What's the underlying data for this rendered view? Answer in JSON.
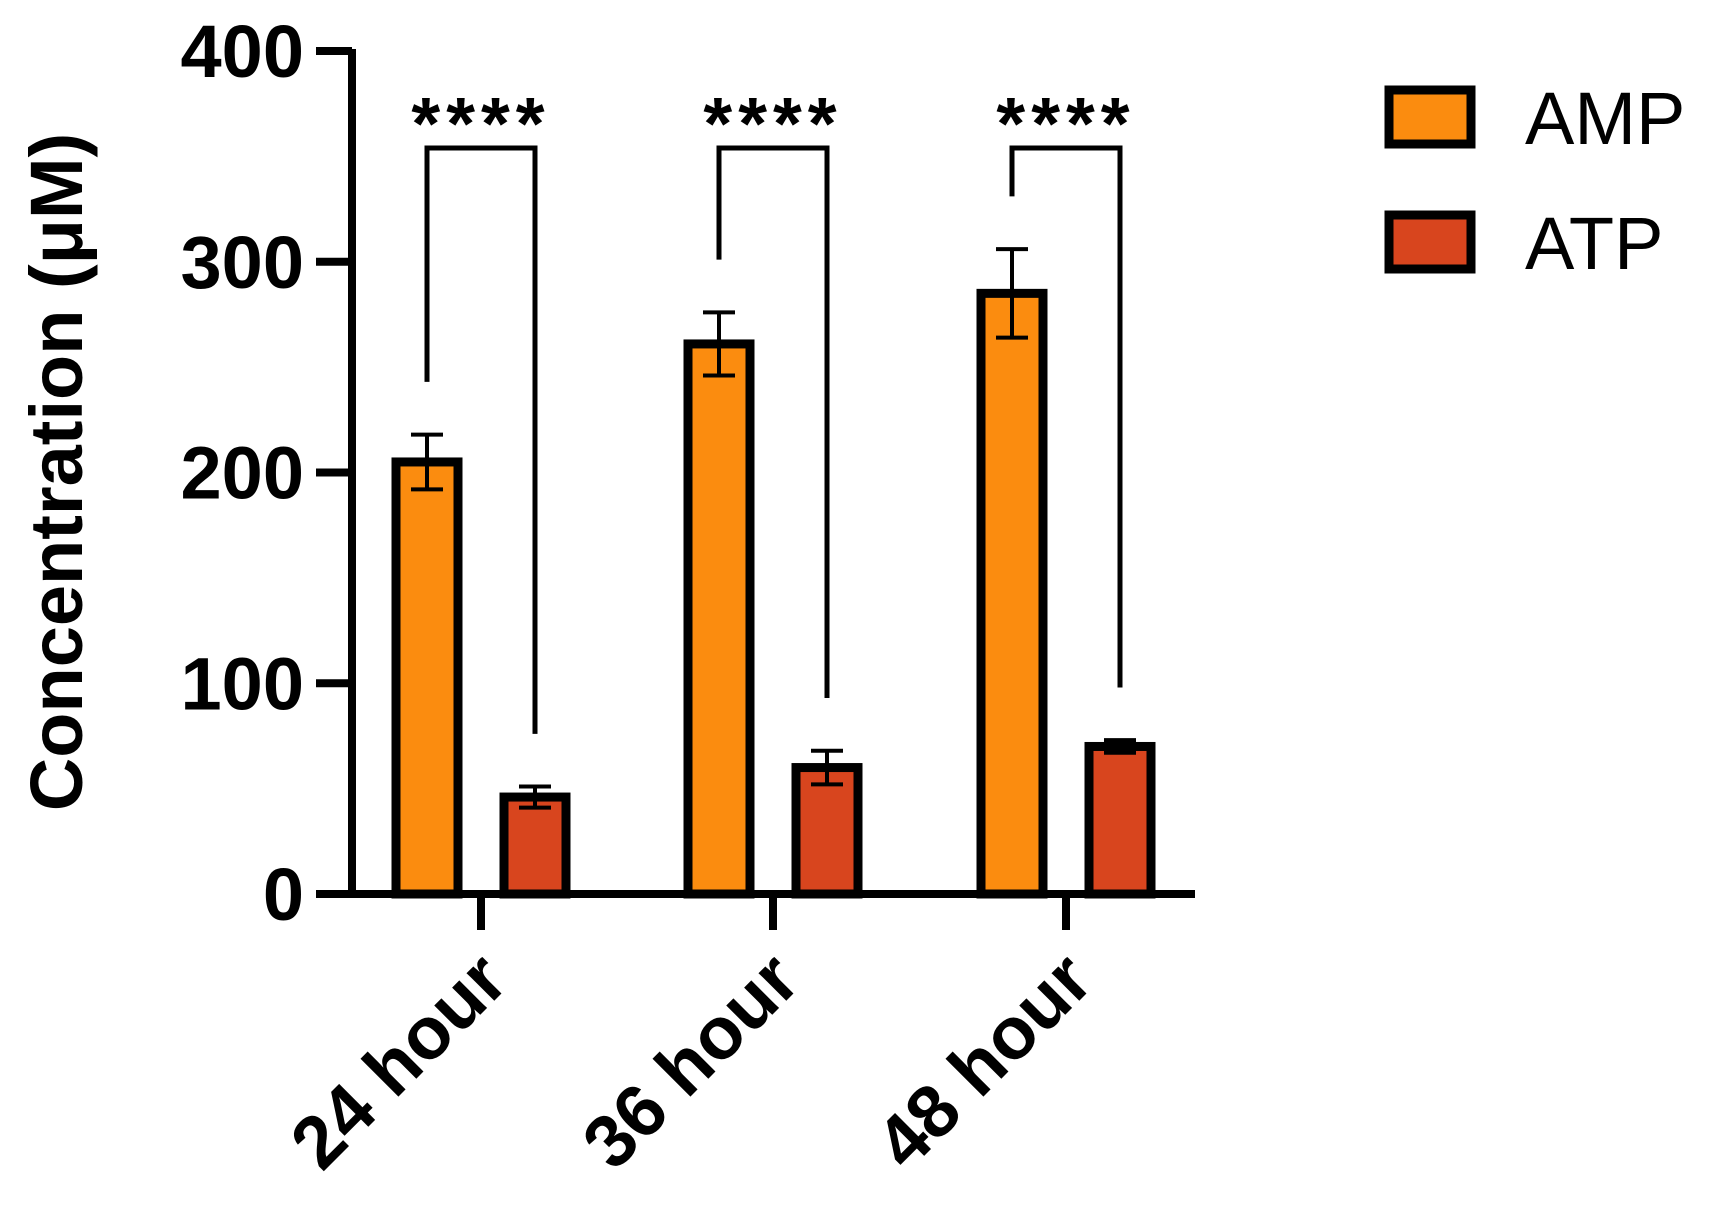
{
  "chart_data": {
    "type": "bar",
    "categories": [
      "24 hour",
      "36 hour",
      "48 hour"
    ],
    "series": [
      {
        "name": "AMP",
        "values": [
          205,
          261,
          285
        ],
        "errors": [
          13,
          15,
          21
        ]
      },
      {
        "name": "ATP",
        "values": [
          46,
          60,
          70
        ],
        "errors": [
          5,
          8,
          3
        ]
      }
    ],
    "ylabel": "Concentration (μM)",
    "xlabel": "",
    "ylim": [
      0,
      400
    ],
    "yticks": [
      "0",
      "100",
      "200",
      "300",
      "400"
    ],
    "significance": [
      "****",
      "****",
      "****"
    ],
    "legend_position": "top-right",
    "grid": false,
    "colors": {
      "AMP": "#fb8c0f",
      "ATP": "#d8451e",
      "outline": "#000000"
    }
  }
}
